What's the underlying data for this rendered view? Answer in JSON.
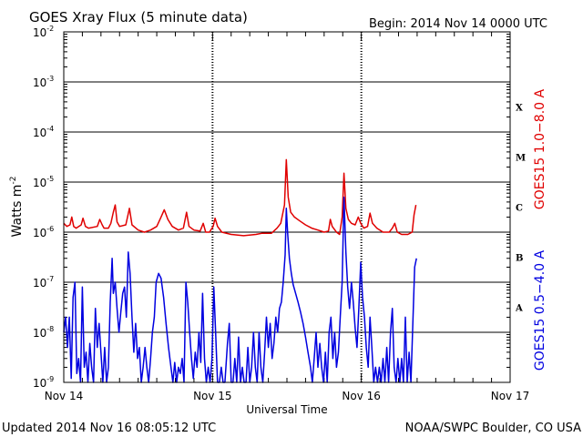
{
  "chart_data": {
    "type": "line",
    "title": "GOES Xray Flux (5 minute data)",
    "begin_label": "Begin:  2014 Nov 14 0000 UTC",
    "xlabel": "Universal Time",
    "ylabel": "Watts m",
    "ylabel_exp": "-2",
    "ylim": [
      1e-09,
      0.01
    ],
    "yscale": "log",
    "xlim_hours": [
      0,
      72
    ],
    "y_ticks": [
      {
        "base": "10",
        "exp": "-9"
      },
      {
        "base": "10",
        "exp": "-8"
      },
      {
        "base": "10",
        "exp": "-7"
      },
      {
        "base": "10",
        "exp": "-6"
      },
      {
        "base": "10",
        "exp": "-5"
      },
      {
        "base": "10",
        "exp": "-4"
      },
      {
        "base": "10",
        "exp": "-3"
      },
      {
        "base": "10",
        "exp": "-2"
      }
    ],
    "x_ticks": [
      "Nov 14",
      "Nov 15",
      "Nov 16",
      "Nov 17"
    ],
    "flare_classes": [
      "A",
      "B",
      "C",
      "M",
      "X"
    ],
    "grid": true,
    "series": [
      {
        "name": "GOES15 1.0−8.0 A",
        "color": "#e00000",
        "points": [
          [
            0,
            1.5e-06
          ],
          [
            0.5,
            1.3e-06
          ],
          [
            1,
            1.4e-06
          ],
          [
            1.3,
            2e-06
          ],
          [
            1.6,
            1.3e-06
          ],
          [
            2,
            1.2e-06
          ],
          [
            2.8,
            1.4e-06
          ],
          [
            3.1,
            1.9e-06
          ],
          [
            3.5,
            1.3e-06
          ],
          [
            4,
            1.2e-06
          ],
          [
            5.4,
            1.3e-06
          ],
          [
            5.8,
            1.8e-06
          ],
          [
            6.2,
            1.4e-06
          ],
          [
            6.5,
            1.2e-06
          ],
          [
            7.2,
            1.2e-06
          ],
          [
            7.6,
            1.5e-06
          ],
          [
            8,
            2.5e-06
          ],
          [
            8.3,
            3.5e-06
          ],
          [
            8.6,
            1.6e-06
          ],
          [
            9,
            1.3e-06
          ],
          [
            10,
            1.4e-06
          ],
          [
            10.6,
            3e-06
          ],
          [
            11,
            1.4e-06
          ],
          [
            12,
            1.1e-06
          ],
          [
            13,
            1e-06
          ],
          [
            14,
            1.1e-06
          ],
          [
            15,
            1.3e-06
          ],
          [
            15.7,
            2e-06
          ],
          [
            16.2,
            2.8e-06
          ],
          [
            16.8,
            1.8e-06
          ],
          [
            17.5,
            1.3e-06
          ],
          [
            18.5,
            1.1e-06
          ],
          [
            19.3,
            1.2e-06
          ],
          [
            19.8,
            2.5e-06
          ],
          [
            20.2,
            1.3e-06
          ],
          [
            21,
            1.1e-06
          ],
          [
            22,
            1.05e-06
          ],
          [
            22.5,
            1.5e-06
          ],
          [
            22.9,
            1e-06
          ],
          [
            23.5,
            1e-06
          ],
          [
            24.1,
            1.3e-06
          ],
          [
            24.4,
            1.9e-06
          ],
          [
            24.8,
            1.3e-06
          ],
          [
            25.5,
            1e-06
          ],
          [
            27,
            9e-07
          ],
          [
            29,
            8.5e-07
          ],
          [
            31,
            9e-07
          ],
          [
            32,
            9.5e-07
          ],
          [
            33.5,
            9.5e-07
          ],
          [
            34.4,
            1.2e-06
          ],
          [
            35,
            1.5e-06
          ],
          [
            35.6,
            3.5e-06
          ],
          [
            35.9,
            2.8e-05
          ],
          [
            36.2,
            5e-06
          ],
          [
            36.6,
            2.5e-06
          ],
          [
            37.2,
            2e-06
          ],
          [
            38,
            1.7e-06
          ],
          [
            39,
            1.4e-06
          ],
          [
            40,
            1.2e-06
          ],
          [
            41,
            1.1e-06
          ],
          [
            42,
            1e-06
          ],
          [
            42.7,
            1.05e-06
          ],
          [
            43,
            1.8e-06
          ],
          [
            43.3,
            1.3e-06
          ],
          [
            44,
            1e-06
          ],
          [
            44.5,
            9e-07
          ],
          [
            44.9,
            2e-06
          ],
          [
            45.2,
            1.5e-05
          ],
          [
            45.5,
            3e-06
          ],
          [
            45.9,
            1.8e-06
          ],
          [
            46.4,
            1.5e-06
          ],
          [
            47,
            1.4e-06
          ],
          [
            47.5,
            2e-06
          ],
          [
            47.9,
            1.5e-06
          ],
          [
            48.4,
            1.2e-06
          ],
          [
            49,
            1.3e-06
          ],
          [
            49.4,
            2.4e-06
          ],
          [
            49.8,
            1.5e-06
          ],
          [
            50.5,
            1.2e-06
          ],
          [
            51.5,
            1e-06
          ],
          [
            52.5,
            1e-06
          ],
          [
            53,
            1.2e-06
          ],
          [
            53.4,
            1.5e-06
          ],
          [
            53.8,
            1e-06
          ],
          [
            54.5,
            9e-07
          ],
          [
            55.5,
            9e-07
          ],
          [
            56.2,
            1e-06
          ],
          [
            56.5,
            2.2e-06
          ],
          [
            56.8,
            3.5e-06
          ]
        ]
      },
      {
        "name": "GOES15 0.5−4.0 A",
        "color": "#0000e0",
        "points": [
          [
            0,
            1e-08
          ],
          [
            0.3,
            2e-08
          ],
          [
            0.6,
            5e-09
          ],
          [
            0.9,
            2e-08
          ],
          [
            1.2,
            1.2e-09
          ],
          [
            1.5,
            5e-08
          ],
          [
            1.8,
            1e-07
          ],
          [
            2.1,
            1.5e-09
          ],
          [
            2.4,
            3e-09
          ],
          [
            2.7,
            1e-09
          ],
          [
            3.0,
            8e-08
          ],
          [
            3.3,
            2e-09
          ],
          [
            3.6,
            4e-09
          ],
          [
            3.9,
            1e-09
          ],
          [
            4.2,
            6e-09
          ],
          [
            4.5,
            2e-09
          ],
          [
            4.8,
            1e-09
          ],
          [
            5.1,
            3e-08
          ],
          [
            5.4,
            5e-09
          ],
          [
            5.7,
            1.5e-08
          ],
          [
            6.0,
            4e-09
          ],
          [
            6.3,
            1e-09
          ],
          [
            6.6,
            5e-09
          ],
          [
            6.9,
            1e-09
          ],
          [
            7.2,
            2e-09
          ],
          [
            7.5,
            4e-08
          ],
          [
            7.8,
            3e-07
          ],
          [
            8.0,
            6e-08
          ],
          [
            8.3,
            1e-07
          ],
          [
            8.6,
            3e-08
          ],
          [
            8.9,
            1e-08
          ],
          [
            9.2,
            2.5e-08
          ],
          [
            9.5,
            6e-08
          ],
          [
            9.8,
            8e-08
          ],
          [
            10.1,
            2e-08
          ],
          [
            10.4,
            4e-07
          ],
          [
            10.7,
            1.5e-07
          ],
          [
            11.0,
            2e-08
          ],
          [
            11.3,
            4e-09
          ],
          [
            11.6,
            1.5e-08
          ],
          [
            11.9,
            3e-09
          ],
          [
            12.2,
            5e-09
          ],
          [
            12.5,
            1e-09
          ],
          [
            12.8,
            2e-09
          ],
          [
            13.1,
            5e-09
          ],
          [
            13.4,
            2e-09
          ],
          [
            13.7,
            1e-09
          ],
          [
            14.0,
            3e-09
          ],
          [
            14.3,
            1e-08
          ],
          [
            14.6,
            2e-08
          ],
          [
            14.9,
            1e-07
          ],
          [
            15.3,
            1.5e-07
          ],
          [
            15.7,
            1.2e-07
          ],
          [
            16.1,
            5e-08
          ],
          [
            16.5,
            1.5e-08
          ],
          [
            16.9,
            5e-09
          ],
          [
            17.3,
            2e-09
          ],
          [
            17.6,
            1e-09
          ],
          [
            17.9,
            2.5e-09
          ],
          [
            18.2,
            1e-09
          ],
          [
            18.5,
            2e-09
          ],
          [
            18.8,
            1.5e-09
          ],
          [
            19.1,
            3e-09
          ],
          [
            19.4,
            1e-09
          ],
          [
            19.7,
            1e-07
          ],
          [
            20.0,
            4e-08
          ],
          [
            20.3,
            1e-08
          ],
          [
            20.6,
            3e-09
          ],
          [
            20.9,
            1.2e-09
          ],
          [
            21.2,
            4e-09
          ],
          [
            21.5,
            2e-09
          ],
          [
            21.8,
            1e-08
          ],
          [
            22.1,
            2.5e-09
          ],
          [
            22.4,
            6e-08
          ],
          [
            22.7,
            3e-09
          ],
          [
            23.0,
            1e-09
          ],
          [
            23.3,
            2e-09
          ],
          [
            23.6,
            1e-09
          ],
          [
            23.9,
            3e-09
          ],
          [
            24.2,
            8e-08
          ],
          [
            24.5,
            1e-08
          ],
          [
            24.8,
            1e-09
          ],
          [
            25.1,
            1e-09
          ],
          [
            25.4,
            2e-09
          ],
          [
            25.7,
            1e-09
          ],
          [
            26.0,
            1e-09
          ],
          [
            26.4,
            6e-09
          ],
          [
            26.7,
            1.5e-08
          ],
          [
            27.0,
            1e-09
          ],
          [
            27.3,
            1e-09
          ],
          [
            27.6,
            3e-09
          ],
          [
            27.9,
            1e-09
          ],
          [
            28.2,
            8e-09
          ],
          [
            28.5,
            1e-09
          ],
          [
            28.8,
            2e-09
          ],
          [
            29.1,
            1e-09
          ],
          [
            29.4,
            1e-09
          ],
          [
            29.7,
            5e-09
          ],
          [
            30.0,
            1e-09
          ],
          [
            30.3,
            2e-09
          ],
          [
            30.6,
            1e-08
          ],
          [
            30.9,
            2e-09
          ],
          [
            31.2,
            1e-09
          ],
          [
            31.5,
            1e-08
          ],
          [
            31.8,
            2e-09
          ],
          [
            32.1,
            1e-09
          ],
          [
            32.4,
            4e-09
          ],
          [
            32.7,
            2e-08
          ],
          [
            33.0,
            5e-09
          ],
          [
            33.3,
            1.5e-08
          ],
          [
            33.6,
            3e-09
          ],
          [
            33.9,
            6e-09
          ],
          [
            34.2,
            2e-08
          ],
          [
            34.5,
            1e-08
          ],
          [
            34.8,
            3e-08
          ],
          [
            35.1,
            4e-08
          ],
          [
            35.4,
            1e-07
          ],
          [
            35.7,
            3.5e-07
          ],
          [
            35.9,
            3e-06
          ],
          [
            36.1,
            1e-06
          ],
          [
            36.4,
            3e-07
          ],
          [
            36.7,
            1.5e-07
          ],
          [
            37.0,
            9e-08
          ],
          [
            37.4,
            6e-08
          ],
          [
            37.8,
            4e-08
          ],
          [
            38.2,
            2.5e-08
          ],
          [
            38.6,
            1.5e-08
          ],
          [
            39.0,
            8e-09
          ],
          [
            39.4,
            4e-09
          ],
          [
            39.8,
            2e-09
          ],
          [
            40.1,
            1e-09
          ],
          [
            40.4,
            3e-09
          ],
          [
            40.7,
            1e-08
          ],
          [
            41.0,
            2e-09
          ],
          [
            41.3,
            6e-09
          ],
          [
            41.6,
            2e-09
          ],
          [
            41.9,
            1e-09
          ],
          [
            42.2,
            4e-09
          ],
          [
            42.5,
            1e-09
          ],
          [
            42.8,
            1e-08
          ],
          [
            43.1,
            2e-08
          ],
          [
            43.4,
            3e-09
          ],
          [
            43.7,
            1e-08
          ],
          [
            44.0,
            2e-09
          ],
          [
            44.3,
            4e-09
          ],
          [
            44.6,
            2e-08
          ],
          [
            44.9,
            1e-07
          ],
          [
            45.2,
            5e-06
          ],
          [
            45.5,
            4e-07
          ],
          [
            45.8,
            8e-08
          ],
          [
            46.1,
            3e-08
          ],
          [
            46.4,
            1e-07
          ],
          [
            46.7,
            4e-08
          ],
          [
            47.0,
            1.2e-08
          ],
          [
            47.3,
            5e-09
          ],
          [
            47.6,
            3e-08
          ],
          [
            47.9,
            2.5e-07
          ],
          [
            48.2,
            5e-08
          ],
          [
            48.5,
            2e-08
          ],
          [
            48.8,
            5e-09
          ],
          [
            49.1,
            2e-09
          ],
          [
            49.4,
            2e-08
          ],
          [
            49.7,
            5e-09
          ],
          [
            50.0,
            1e-09
          ],
          [
            50.3,
            2e-09
          ],
          [
            50.6,
            1e-09
          ],
          [
            50.9,
            2e-09
          ],
          [
            51.2,
            1e-09
          ],
          [
            51.5,
            3e-09
          ],
          [
            51.8,
            1e-09
          ],
          [
            52.1,
            5e-09
          ],
          [
            52.4,
            1e-09
          ],
          [
            52.7,
            1e-08
          ],
          [
            53.0,
            3e-08
          ],
          [
            53.3,
            2e-09
          ],
          [
            53.6,
            1e-09
          ],
          [
            53.9,
            3e-09
          ],
          [
            54.2,
            1e-09
          ],
          [
            54.5,
            3e-09
          ],
          [
            54.8,
            1e-09
          ],
          [
            55.1,
            2e-08
          ],
          [
            55.4,
            1e-09
          ],
          [
            55.7,
            4e-09
          ],
          [
            56.0,
            1e-09
          ],
          [
            56.3,
            1.5e-08
          ],
          [
            56.6,
            2e-07
          ],
          [
            56.9,
            3e-07
          ]
        ]
      }
    ]
  },
  "footer": {
    "updated": "Updated 2014 Nov 16 08:05:12 UTC",
    "source": "NOAA/SWPC Boulder, CO USA"
  }
}
